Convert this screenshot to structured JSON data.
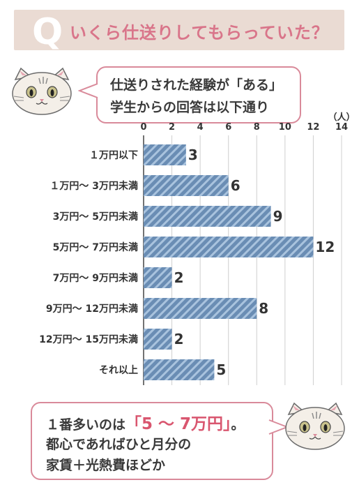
{
  "header": {
    "q_letter": "Q",
    "title": "いくら仕送りしてもらっていた？"
  },
  "intro_bubble": {
    "line1": "仕送りされた経験が「ある」",
    "line2": "学生からの回答は以下通り"
  },
  "summary_bubble": {
    "line1_prefix": "１番多いのは",
    "line1_highlight": "「5 ～ 7万円」",
    "line1_suffix": "。",
    "line2": "都心であればひと月分の",
    "line3": "家賃＋光熱費ほどか"
  },
  "colors": {
    "banner": "#eadbd3",
    "accent": "#d9758a",
    "bar": "#6a8db4",
    "bar_stripe": "#a9c3de"
  },
  "chart_data": {
    "type": "bar",
    "orientation": "horizontal",
    "categories": [
      "１万円以下",
      "１万円～ 3万円未満",
      "3万円～ 5万円未満",
      "5万円～ 7万円未満",
      "7万円～ 9万円未満",
      "9万円～ 12万円未満",
      "12万円～ 15万円未満",
      "それ以上"
    ],
    "values": [
      3,
      6,
      9,
      12,
      2,
      8,
      2,
      5
    ],
    "unit_label": "（人）",
    "xlim": [
      0,
      14
    ],
    "ticks": [
      0,
      2,
      4,
      6,
      8,
      10,
      12,
      14
    ],
    "grid": true
  }
}
